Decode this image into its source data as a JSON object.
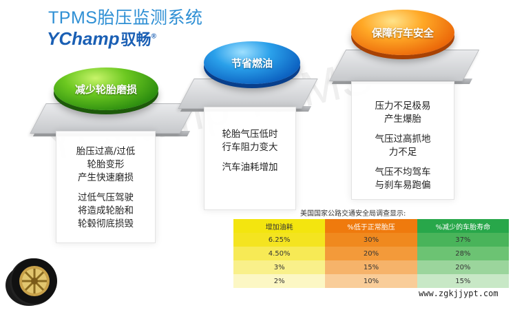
{
  "header": {
    "title": "TPMS胎压监测系统",
    "brand_en": "YChamp",
    "brand_cn": "驭畅",
    "brand_mark": "®"
  },
  "watermark": "YChamp TPMS",
  "cards": [
    {
      "button_label": "减少轮胎磨损",
      "color": "#4cb81c",
      "paragraphs": [
        "胎压过高/过低\n轮胎变形\n产生快速磨损",
        "过低气压驾驶\n将造成轮胎和\n轮毂彻底损毁"
      ]
    },
    {
      "button_label": "节省燃油",
      "color": "#1a82d8",
      "paragraphs": [
        "轮胎气压低时\n行车阻力变大",
        "汽车油耗增加"
      ]
    },
    {
      "button_label": "保障行车安全",
      "color": "#f07d10",
      "paragraphs": [
        "压力不足极易\n产生爆胎",
        "气压过高抓地\n力不足",
        "气压不均驾车\n与刹车易跑偏"
      ]
    }
  ],
  "table": {
    "caption": "美国国家公路交通安全局调查显示:",
    "headers": [
      "增加油耗",
      "%低于正常胎压",
      "%减少的车胎寿命"
    ],
    "rows": [
      [
        "6.25%",
        "30%",
        "37%"
      ],
      [
        "4.50%",
        "20%",
        "28%"
      ],
      [
        "3%",
        "15%",
        "20%"
      ],
      [
        "2%",
        "10%",
        "15%"
      ]
    ]
  },
  "footer": {
    "website": "www.zgkjjypt.com"
  }
}
